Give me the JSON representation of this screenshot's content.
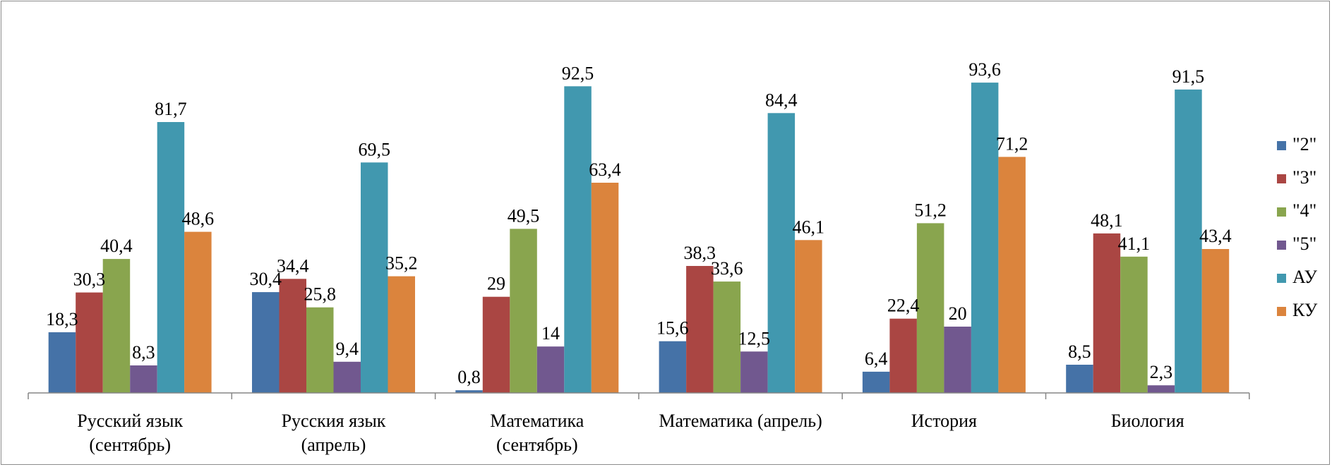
{
  "chart_data": {
    "type": "bar",
    "title": "",
    "xlabel": "",
    "ylabel": "",
    "ylim": [
      0,
      100
    ],
    "grid": false,
    "legend_position": "right",
    "categories": [
      [
        "Русский язык",
        "(сентябрь)"
      ],
      [
        "Русския язык",
        "(апрель)"
      ],
      [
        "Математика",
        "(сентябрь)"
      ],
      [
        "Математика (апрель)"
      ],
      [
        "История"
      ],
      [
        "Биология"
      ]
    ],
    "series": [
      {
        "name": "\"2\"",
        "color": "#4572a7",
        "values": [
          18.3,
          30.4,
          0.8,
          15.6,
          6.4,
          8.5
        ],
        "labels": [
          "18,3",
          "30,4",
          "0,8",
          "15,6",
          "6,4",
          "8,5"
        ]
      },
      {
        "name": "\"3\"",
        "color": "#aa4643",
        "values": [
          30.3,
          34.4,
          29,
          38.3,
          22.4,
          48.1
        ],
        "labels": [
          "30,3",
          "34,4",
          "29",
          "38,3",
          "22,4",
          "48,1"
        ]
      },
      {
        "name": "\"4\"",
        "color": "#89a54e",
        "values": [
          40.4,
          25.8,
          49.5,
          33.6,
          51.2,
          41.1
        ],
        "labels": [
          "40,4",
          "25,8",
          "49,5",
          "33,6",
          "51,2",
          "41,1"
        ]
      },
      {
        "name": "\"5\"",
        "color": "#71588f",
        "values": [
          8.3,
          9.4,
          14,
          12.5,
          20,
          2.3
        ],
        "labels": [
          "8,3",
          "9,4",
          "14",
          "12,5",
          "20",
          "2,3"
        ]
      },
      {
        "name": "АУ",
        "color": "#4198af",
        "values": [
          81.7,
          69.5,
          92.5,
          84.4,
          93.6,
          91.5
        ],
        "labels": [
          "81,7",
          "69,5",
          "92,5",
          "84,4",
          "93,6",
          "91,5"
        ]
      },
      {
        "name": "КУ",
        "color": "#db843d",
        "values": [
          48.6,
          35.2,
          63.4,
          46.1,
          71.2,
          43.4
        ],
        "labels": [
          "48,6",
          "35,2",
          "63,4",
          "46,1",
          "71,2",
          "43,4"
        ]
      }
    ]
  }
}
